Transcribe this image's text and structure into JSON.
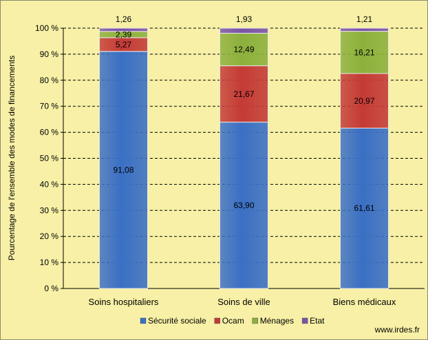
{
  "chart_data": {
    "type": "bar",
    "stacked": true,
    "percent": true,
    "categories": [
      "Soins hospitaliers",
      "Soins de ville",
      "Biens médicaux"
    ],
    "series": [
      {
        "name": "Sécurité sociale",
        "values": [
          91.08,
          63.9,
          61.61
        ],
        "labels": [
          "91,08",
          "63,90",
          "61,61"
        ],
        "color": "#3a6fc4"
      },
      {
        "name": "Ocam",
        "values": [
          5.27,
          21.67,
          20.97
        ],
        "labels": [
          "5,27",
          "21,67",
          "20,97"
        ],
        "color": "#c43a36"
      },
      {
        "name": "Ménages",
        "values": [
          2.39,
          12.49,
          16.21
        ],
        "labels": [
          "2,39",
          "12,49",
          "16,21"
        ],
        "color": "#8cb03c"
      },
      {
        "name": "Etat",
        "values": [
          1.26,
          1.93,
          1.21
        ],
        "labels": [
          "1,26",
          "1,93",
          "1,21"
        ],
        "color": "#7a52a8"
      }
    ],
    "ylabel": "Pourcentage de l'ensemble des modes de financements",
    "xlabel": "",
    "ylim": [
      0,
      100
    ],
    "yticks": [
      "0 %",
      "10 %",
      "20 %",
      "30 %",
      "40 %",
      "50 %",
      "60 %",
      "70 %",
      "80 %",
      "90 %",
      "100 %"
    ],
    "grid": "dashed horizontal",
    "legend": "bottom"
  },
  "source": "www.irdes.fr"
}
